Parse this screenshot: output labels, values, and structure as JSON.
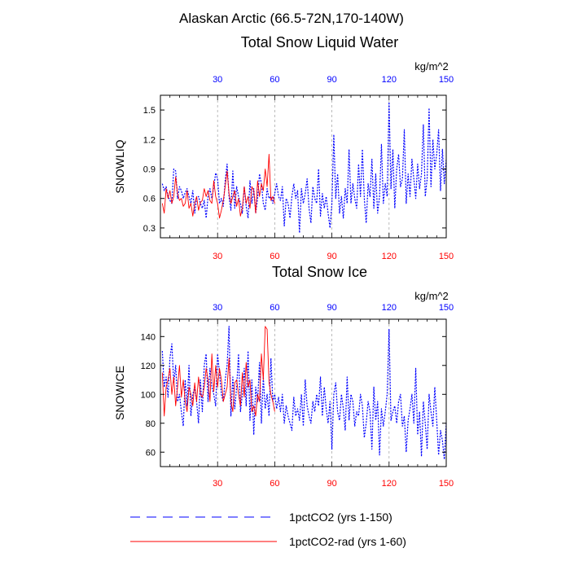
{
  "figure": {
    "title": "Alaskan Arctic (66.5-72N,170-140W)"
  },
  "colors": {
    "series_blue": "#0000ff",
    "series_red": "#ff0000",
    "grid": "#aaaaaa"
  },
  "legend": {
    "items": [
      {
        "label": "1pctCO2 (yrs 1-150)",
        "color": "#0000ff",
        "style": "dashed"
      },
      {
        "label": "1pctCO2-rad (yrs 1-60)",
        "color": "#ff0000",
        "style": "solid"
      }
    ]
  },
  "chart_data": [
    {
      "type": "line",
      "title": "Total Snow Liquid Water",
      "units_label": "kg/m^2",
      "ylabel": "SNOWLIQ",
      "xlim": [
        0,
        150
      ],
      "ylim": [
        0.2,
        1.65
      ],
      "x_ticks_top": [
        30,
        60,
        90,
        120,
        150
      ],
      "x_ticks_bottom": [
        30,
        60,
        90,
        120,
        150
      ],
      "y_ticks": [
        0.3,
        0.6,
        0.9,
        1.2,
        1.5
      ],
      "y_tick_labels": [
        "0.3",
        "0.6",
        "0.9",
        "1.2",
        "1.5"
      ],
      "grid_vertical": [
        30,
        60,
        90,
        120
      ],
      "series": [
        {
          "name": "1pctCO2 (yrs 1-150)",
          "values": [
            0.75,
            0.68,
            0.72,
            0.62,
            0.58,
            0.55,
            0.9,
            0.88,
            0.6,
            0.72,
            0.68,
            0.6,
            0.66,
            0.7,
            0.62,
            0.55,
            0.68,
            0.45,
            0.6,
            0.62,
            0.55,
            0.5,
            0.58,
            0.4,
            0.62,
            0.7,
            0.6,
            0.72,
            0.86,
            0.8,
            0.55,
            0.6,
            0.52,
            0.78,
            0.95,
            0.62,
            0.48,
            0.88,
            0.5,
            0.72,
            0.62,
            0.55,
            0.45,
            0.72,
            0.52,
            0.4,
            0.78,
            0.55,
            0.7,
            0.45,
            0.6,
            0.85,
            0.75,
            0.55,
            0.48,
            0.7,
            0.6,
            0.62,
            0.55,
            0.65,
            0.75,
            0.62,
            0.58,
            0.72,
            0.32,
            0.6,
            0.55,
            0.4,
            0.62,
            0.75,
            0.6,
            0.68,
            0.25,
            0.7,
            0.55,
            0.65,
            0.8,
            0.5,
            0.35,
            0.72,
            0.6,
            0.55,
            0.9,
            0.42,
            0.65,
            0.5,
            0.62,
            0.45,
            0.3,
            0.55,
            1.25,
            0.6,
            0.85,
            0.45,
            0.62,
            0.4,
            0.7,
            0.55,
            1.1,
            0.55,
            0.75,
            0.6,
            0.5,
            0.95,
            0.62,
            1.1,
            0.6,
            0.35,
            0.75,
            0.62,
            1.0,
            0.5,
            0.85,
            0.45,
            0.62,
            1.15,
            0.55,
            0.75,
            0.62,
            1.58,
            0.7,
            1.1,
            0.5,
            0.9,
            1.05,
            0.72,
            0.8,
            1.3,
            0.55,
            0.85,
            0.62,
            1.0,
            0.8,
            0.6,
            0.95,
            0.7,
            0.85,
            1.35,
            0.62,
            0.8,
            1.52,
            0.72,
            1.2,
            0.9,
            1.05,
            1.3,
            0.68,
            1.1,
            0.75,
            1.0
          ]
        },
        {
          "name": "1pctCO2-rad (yrs 1-60)",
          "values": [
            0.55,
            0.45,
            0.7,
            0.6,
            0.68,
            0.55,
            0.62,
            0.82,
            0.65,
            0.58,
            0.6,
            0.52,
            0.55,
            0.68,
            0.5,
            0.55,
            0.42,
            0.55,
            0.62,
            0.48,
            0.56,
            0.58,
            0.7,
            0.62,
            0.68,
            0.58,
            0.55,
            0.78,
            0.62,
            0.55,
            0.4,
            0.48,
            0.58,
            0.72,
            0.88,
            0.65,
            0.55,
            0.62,
            0.68,
            0.52,
            0.6,
            0.42,
            0.5,
            0.72,
            0.55,
            0.62,
            0.5,
            0.72,
            0.68,
            0.45,
            0.78,
            0.62,
            0.75,
            0.68,
            0.9,
            0.72,
            1.05,
            0.58,
            0.62,
            0.55
          ]
        }
      ]
    },
    {
      "type": "line",
      "title": "Total Snow Ice",
      "units_label": "kg/m^2",
      "ylabel": "SNOWICE",
      "xlim": [
        0,
        150
      ],
      "ylim": [
        50,
        152
      ],
      "x_ticks_top": [
        30,
        60,
        90,
        120,
        150
      ],
      "x_ticks_bottom": [
        30,
        60,
        90,
        120,
        150
      ],
      "y_ticks": [
        60,
        80,
        100,
        120,
        140
      ],
      "y_tick_labels": [
        "60",
        "80",
        "100",
        "120",
        "140"
      ],
      "grid_vertical": [
        30,
        60,
        90,
        120
      ],
      "series": [
        {
          "name": "1pctCO2 (yrs 1-150)",
          "values": [
            130,
            105,
            112,
            98,
            125,
            135,
            108,
            120,
            95,
            100,
            88,
            78,
            110,
            92,
            120,
            85,
            100,
            105,
            95,
            80,
            110,
            88,
            120,
            128,
            95,
            118,
            105,
            100,
            92,
            128,
            115,
            100,
            95,
            110,
            120,
            147,
            85,
            112,
            90,
            105,
            128,
            88,
            100,
            118,
            92,
            130,
            82,
            110,
            72,
            105,
            95,
            122,
            80,
            112,
            90,
            100,
            85,
            125,
            95,
            100,
            90,
            98,
            88,
            100,
            80,
            92,
            85,
            80,
            75,
            98,
            85,
            90,
            82,
            100,
            78,
            110,
            92,
            85,
            80,
            95,
            88,
            100,
            92,
            112,
            85,
            105,
            90,
            80,
            95,
            62,
            100,
            108,
            88,
            82,
            100,
            90,
            75,
            112,
            82,
            100,
            95,
            78,
            88,
            85,
            100,
            92,
            70,
            80,
            95,
            88,
            62,
            105,
            82,
            95,
            58,
            90,
            78,
            88,
            100,
            145,
            82,
            88,
            92,
            80,
            95,
            100,
            78,
            85,
            60,
            82,
            90,
            100,
            80,
            118,
            72,
            88,
            57,
            95,
            80,
            62,
            100,
            88,
            78,
            105,
            82,
            58,
            75,
            68,
            55,
            80
          ]
        },
        {
          "name": "1pctCO2-rad (yrs 1-60)",
          "values": [
            115,
            85,
            105,
            110,
            118,
            100,
            112,
            92,
            105,
            120,
            98,
            110,
            95,
            88,
            105,
            100,
            92,
            108,
            95,
            112,
            100,
            98,
            105,
            118,
            110,
            95,
            128,
            102,
            120,
            105,
            118,
            110,
            95,
            100,
            105,
            125,
            95,
            88,
            108,
            110,
            100,
            92,
            115,
            98,
            122,
            105,
            110,
            88,
            92,
            85,
            100,
            95,
            128,
            110,
            147,
            145,
            108,
            100,
            95,
            88
          ]
        }
      ]
    }
  ]
}
